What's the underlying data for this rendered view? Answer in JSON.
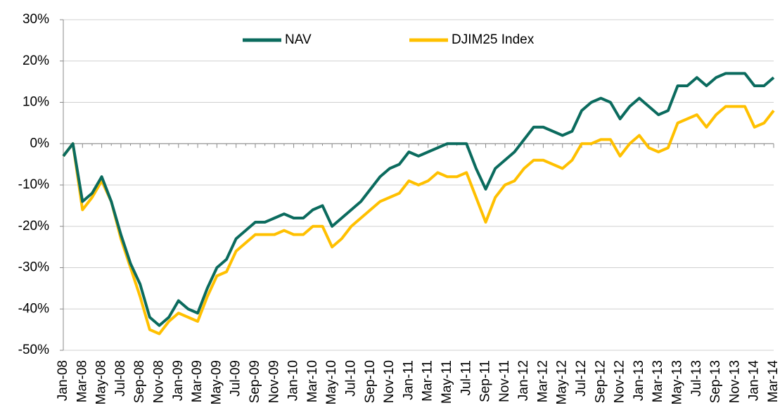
{
  "chart_data": {
    "type": "line",
    "categories": [
      "Jan-08",
      null,
      "Mar-08",
      null,
      "May-08",
      null,
      "Jul-08",
      null,
      "Sep-08",
      null,
      "Nov-08",
      null,
      "Jan-09",
      null,
      "Mar-09",
      null,
      "May-09",
      null,
      "Jul-09",
      null,
      "Sep-09",
      null,
      "Nov-09",
      null,
      "Jan-10",
      null,
      "Mar-10",
      null,
      "May-10",
      null,
      "Jul-10",
      null,
      "Sep-10",
      null,
      "Nov-10",
      null,
      "Jan-11",
      null,
      "Mar-11",
      null,
      "May-11",
      null,
      "Jul-11",
      null,
      "Sep-11",
      null,
      "Nov-11",
      null,
      "Jan-12",
      null,
      "Mar-12",
      null,
      "May-12",
      null,
      "Jul-12",
      null,
      "Sep-12",
      null,
      "Nov-12",
      null,
      "Jan-13",
      null,
      "Mar-13",
      null,
      "May-13",
      null,
      "Jul-13",
      null,
      "Sep-13",
      null,
      "Nov-13",
      null,
      "Jan-14",
      null,
      "Mar-14"
    ],
    "series": [
      {
        "name": "NAV",
        "color": "#0b6b5e",
        "values": [
          -3,
          0,
          -14,
          -12,
          -8,
          -14,
          -22,
          -29,
          -34,
          -42,
          -44,
          -42,
          -38,
          -40,
          -41,
          -35,
          -30,
          -28,
          -23,
          -21,
          -19,
          -19,
          -18,
          -17,
          -18,
          -18,
          -16,
          -15,
          -20,
          -18,
          -16,
          -14,
          -11,
          -8,
          -6,
          -5,
          -2,
          -3,
          -2,
          -1,
          0,
          0,
          0,
          -6,
          -11,
          -6,
          -4,
          -2,
          1,
          4,
          4,
          3,
          2,
          3,
          8,
          10,
          11,
          10,
          6,
          9,
          11,
          9,
          7,
          8,
          14,
          14,
          16,
          14,
          16,
          17,
          17,
          17,
          14,
          14,
          16
        ]
      },
      {
        "name": "DJIM25 Index",
        "color": "#ffc000",
        "values": [
          -3,
          0,
          -16,
          -13,
          -9,
          -14,
          -23,
          -30,
          -37,
          -45,
          -46,
          -43,
          -41,
          -42,
          -43,
          -37,
          -32,
          -31,
          -26,
          -24,
          -22,
          -22,
          -22,
          -21,
          -22,
          -22,
          -20,
          -20,
          -25,
          -23,
          -20,
          -18,
          -16,
          -14,
          -13,
          -12,
          -9,
          -10,
          -9,
          -7,
          -8,
          -8,
          -7,
          -13,
          -19,
          -13,
          -10,
          -9,
          -6,
          -4,
          -4,
          -5,
          -6,
          -4,
          0,
          0,
          1,
          1,
          -3,
          0,
          2,
          -1,
          -2,
          -1,
          5,
          6,
          7,
          4,
          7,
          9,
          9,
          9,
          4,
          5,
          8
        ]
      }
    ],
    "ylim": [
      -50,
      30
    ],
    "yticks": [
      {
        "value": -50,
        "label": "-50%"
      },
      {
        "value": -40,
        "label": "-40%"
      },
      {
        "value": -30,
        "label": "-30%"
      },
      {
        "value": -20,
        "label": "-20%"
      },
      {
        "value": -10,
        "label": "-10%"
      },
      {
        "value": 0,
        "label": "0%"
      },
      {
        "value": 10,
        "label": "10%"
      },
      {
        "value": 20,
        "label": "20%"
      },
      {
        "value": 30,
        "label": "30%"
      }
    ],
    "grid": true,
    "legend": "top"
  }
}
